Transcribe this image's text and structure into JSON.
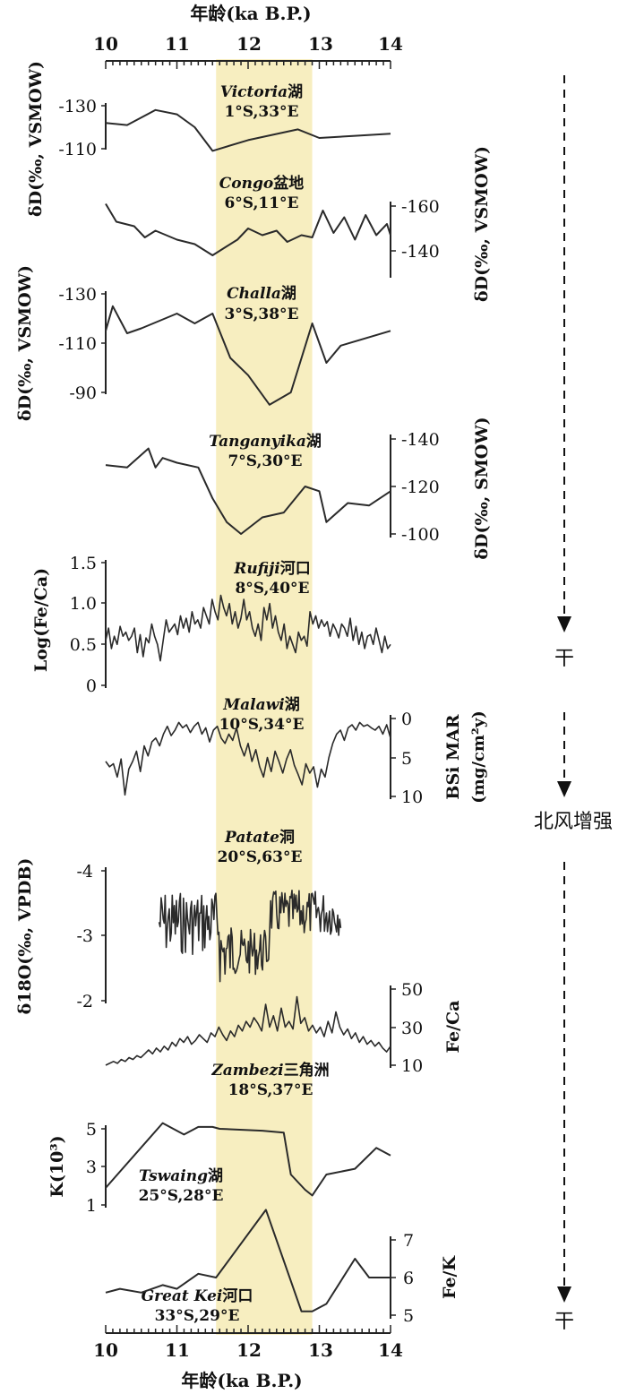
{
  "highlight": {
    "from": 11.55,
    "to": 12.9,
    "color": "#f7eec0"
  },
  "axis_top": {
    "label": "年龄(ka B.P.)",
    "ticks": [
      "10",
      "11",
      "12",
      "13",
      "14"
    ]
  },
  "axis_bottom": {
    "label": "年龄(ka B.P.)",
    "ticks": [
      "10",
      "11",
      "12",
      "13",
      "14"
    ]
  },
  "chart_data": [
    {
      "type": "line",
      "site": "Victoria",
      "site_suffix": "湖",
      "coords": "1°S,33°E",
      "ylabel": "δD(‰, VSMOW)",
      "yside": "left",
      "ylim": [
        -130,
        -110
      ],
      "ticks": [
        "-130",
        "-110"
      ],
      "x": [
        10,
        10.3,
        10.7,
        11,
        11.25,
        11.5,
        12,
        12.7,
        13,
        13.5,
        14
      ],
      "y": [
        -122,
        -121,
        -128,
        -126,
        -120,
        -109,
        -114,
        -119,
        -115,
        -116,
        -117
      ]
    },
    {
      "type": "line",
      "site": "Congo",
      "site_suffix": "盆地",
      "coords": "6°S,11°E",
      "ylabel": "δD(‰, VSMOW)",
      "yside": "right",
      "ylim": [
        -160,
        -140
      ],
      "ticks": [
        "-160",
        "-140"
      ],
      "x": [
        10,
        10.15,
        10.4,
        10.55,
        10.7,
        11,
        11.25,
        11.5,
        11.7,
        11.85,
        12,
        12.2,
        12.4,
        12.55,
        12.75,
        12.9,
        13.05,
        13.2,
        13.35,
        13.5,
        13.65,
        13.8,
        13.95,
        14
      ],
      "y": [
        -161,
        -153,
        -151,
        -146,
        -149,
        -145,
        -143,
        -138,
        -142,
        -145,
        -150,
        -147,
        -149,
        -144,
        -147,
        -146,
        -158,
        -148,
        -155,
        -145,
        -156,
        -147,
        -152,
        -147
      ]
    },
    {
      "type": "line",
      "site": "Challa",
      "site_suffix": "湖",
      "coords": "3°S,38°E",
      "ylabel": "δD(‰, VSMOW)",
      "yside": "left",
      "ylim": [
        -130,
        -90
      ],
      "ticks": [
        "-130",
        "-110",
        "-90"
      ],
      "x": [
        10,
        10.1,
        10.3,
        10.5,
        11,
        11.25,
        11.5,
        11.75,
        12,
        12.3,
        12.6,
        12.9,
        13.1,
        13.3,
        14
      ],
      "y": [
        -115,
        -125,
        -114,
        -116,
        -122,
        -118,
        -122,
        -104,
        -97,
        -85,
        -90,
        -118,
        -102,
        -109,
        -115
      ]
    },
    {
      "type": "line",
      "site": "Tanganyika",
      "site_suffix": "湖",
      "coords": "7°S,30°E",
      "ylabel": "δD(‰, SMOW)",
      "yside": "right",
      "ylim": [
        -140,
        -100
      ],
      "ticks": [
        "-140",
        "-120",
        "-100"
      ],
      "x": [
        10,
        10.3,
        10.6,
        10.7,
        10.8,
        11,
        11.3,
        11.5,
        11.7,
        11.9,
        12.2,
        12.5,
        12.8,
        13,
        13.1,
        13.4,
        13.7,
        14
      ],
      "y": [
        -129,
        -128,
        -136,
        -128,
        -132,
        -130,
        -128,
        -115,
        -105,
        -100,
        -107,
        -109,
        -120,
        -118,
        -105,
        -113,
        -112,
        -118
      ]
    },
    {
      "type": "line",
      "site": "Rufiji",
      "site_suffix": "河口",
      "coords": "8°S,40°E",
      "ylabel": "Log(Fe/Ca)",
      "yside": "left",
      "ylim": [
        0,
        1.5
      ],
      "ticks": [
        "1.5",
        "1.0",
        "0.5",
        "0"
      ],
      "x_range": [
        10,
        14
      ],
      "y": [
        0.55,
        0.7,
        0.45,
        0.6,
        0.5,
        0.72,
        0.6,
        0.65,
        0.55,
        0.6,
        0.7,
        0.4,
        0.62,
        0.35,
        0.58,
        0.52,
        0.75,
        0.6,
        0.5,
        0.3,
        0.55,
        0.8,
        0.65,
        0.7,
        0.75,
        0.62,
        0.85,
        0.7,
        0.82,
        0.65,
        0.9,
        0.75,
        0.8,
        0.7,
        0.95,
        0.85,
        0.75,
        1.05,
        0.9,
        0.8,
        1.1,
        0.95,
        0.85,
        1.0,
        0.75,
        0.9,
        0.7,
        0.82,
        1.05,
        0.8,
        0.9,
        0.7,
        0.6,
        0.75,
        0.55,
        0.95,
        0.8,
        1.0,
        0.7,
        0.85,
        0.65,
        0.55,
        0.75,
        0.45,
        0.6,
        0.5,
        0.4,
        0.65,
        0.55,
        0.6,
        0.48,
        0.9,
        0.75,
        0.85,
        0.7,
        0.8,
        0.72,
        0.78,
        0.6,
        0.75,
        0.68,
        0.58,
        0.75,
        0.7,
        0.6,
        0.82,
        0.55,
        0.72,
        0.5,
        0.65,
        0.45,
        0.6,
        0.62,
        0.5,
        0.7,
        0.55,
        0.4,
        0.6,
        0.45,
        0.5
      ]
    },
    {
      "type": "line",
      "site": "Malawi",
      "site_suffix": "湖",
      "coords": "10°S,34°E",
      "ylabel": "BSi MAR",
      "ylabel_unit": "(mg/cm²y)",
      "yside": "right",
      "ylim": [
        0,
        10
      ],
      "ticks": [
        "0",
        "5",
        "10"
      ],
      "x_range": [
        10,
        14
      ],
      "y": [
        5.5,
        6.2,
        5.8,
        7.5,
        5.2,
        9.8,
        6.5,
        5.5,
        4.2,
        6.8,
        3.5,
        4.8,
        3.0,
        2.5,
        3.5,
        2.0,
        1.0,
        2.2,
        1.5,
        0.5,
        1.2,
        0.8,
        1.8,
        1.0,
        0.5,
        2.0,
        1.2,
        3.0,
        1.5,
        1.0,
        2.5,
        3.2,
        2.0,
        2.8,
        1.2,
        3.5,
        4.8,
        3.2,
        5.5,
        4.0,
        6.2,
        7.5,
        5.0,
        6.8,
        4.2,
        5.5,
        7.0,
        5.2,
        4.0,
        6.0,
        7.2,
        8.5,
        5.8,
        7.0,
        6.2,
        8.8,
        6.5,
        7.5,
        5.0,
        3.2,
        2.0,
        1.5,
        2.8,
        1.2,
        0.8,
        1.5,
        0.5,
        1.0,
        0.8,
        1.2,
        1.5,
        1.0,
        2.0,
        0.8,
        2.5
      ]
    },
    {
      "type": "line",
      "site": "Patate",
      "site_suffix": "洞",
      "coords": "20°S,63°E",
      "ylabel": "δ18O(‰, VPDB)",
      "yside": "left",
      "ylim": [
        -4,
        -2
      ],
      "ticks": [
        "-4",
        "-3",
        "-2"
      ],
      "x_range": [
        10.75,
        13.3
      ],
      "note": "high-frequency record; amplitude about -2.4 to -4.2"
    },
    {
      "type": "line",
      "site": "Zambezi",
      "site_suffix": "三角洲",
      "coords": "18°S,37°E",
      "ylabel": "Fe/Ca",
      "yside": "right",
      "ylim": [
        10,
        50
      ],
      "ticks": [
        "50",
        "30",
        "10"
      ],
      "x_range": [
        10,
        14
      ],
      "y": [
        10,
        11,
        12,
        11,
        13,
        12,
        14,
        13,
        15,
        14,
        16,
        18,
        16,
        19,
        17,
        20,
        18,
        22,
        20,
        24,
        22,
        25,
        21,
        23,
        26,
        24,
        22,
        27,
        25,
        30,
        26,
        23,
        28,
        25,
        31,
        28,
        33,
        30,
        35,
        32,
        28,
        42,
        30,
        36,
        28,
        40,
        30,
        33,
        29,
        46,
        32,
        35,
        28,
        31,
        27,
        30,
        25,
        33,
        27,
        38,
        30,
        26,
        29,
        24,
        27,
        22,
        25,
        21,
        23,
        20,
        22,
        19,
        17,
        20
      ]
    },
    {
      "type": "line",
      "site": "Tswaing",
      "site_suffix": "湖",
      "coords": "25°S,28°E",
      "ylabel": "K(10³)",
      "yside": "left",
      "ylim": [
        1,
        5
      ],
      "ticks": [
        "5",
        "3",
        "1"
      ],
      "x": [
        10,
        10.8,
        11.1,
        11.3,
        11.5,
        11.6,
        12.2,
        12.5,
        12.6,
        12.8,
        12.9,
        13.1,
        13.5,
        13.8,
        14
      ],
      "y": [
        1.9,
        5.3,
        4.7,
        5.1,
        5.1,
        5.0,
        4.9,
        4.8,
        2.6,
        1.8,
        1.5,
        2.6,
        2.9,
        4.0,
        3.6
      ]
    },
    {
      "type": "line",
      "site": "Great Kei",
      "site_suffix": "河口",
      "coords": "33°S,29°E",
      "ylabel": "Fe/K",
      "yside": "right",
      "ylim": [
        5,
        7
      ],
      "ticks": [
        "7",
        "6",
        "5"
      ],
      "x": [
        10,
        10.2,
        10.5,
        10.8,
        11,
        11.3,
        11.55,
        12.25,
        12.75,
        12.9,
        13.1,
        13.5,
        13.7,
        14
      ],
      "y": [
        5.6,
        5.7,
        5.6,
        5.8,
        5.7,
        6.1,
        6.0,
        7.8,
        5.1,
        5.1,
        5.3,
        6.5,
        6.0,
        6.0
      ]
    }
  ],
  "side_annotations": [
    {
      "label": "干"
    },
    {
      "label": "北风增强"
    },
    {
      "label": "干"
    }
  ]
}
